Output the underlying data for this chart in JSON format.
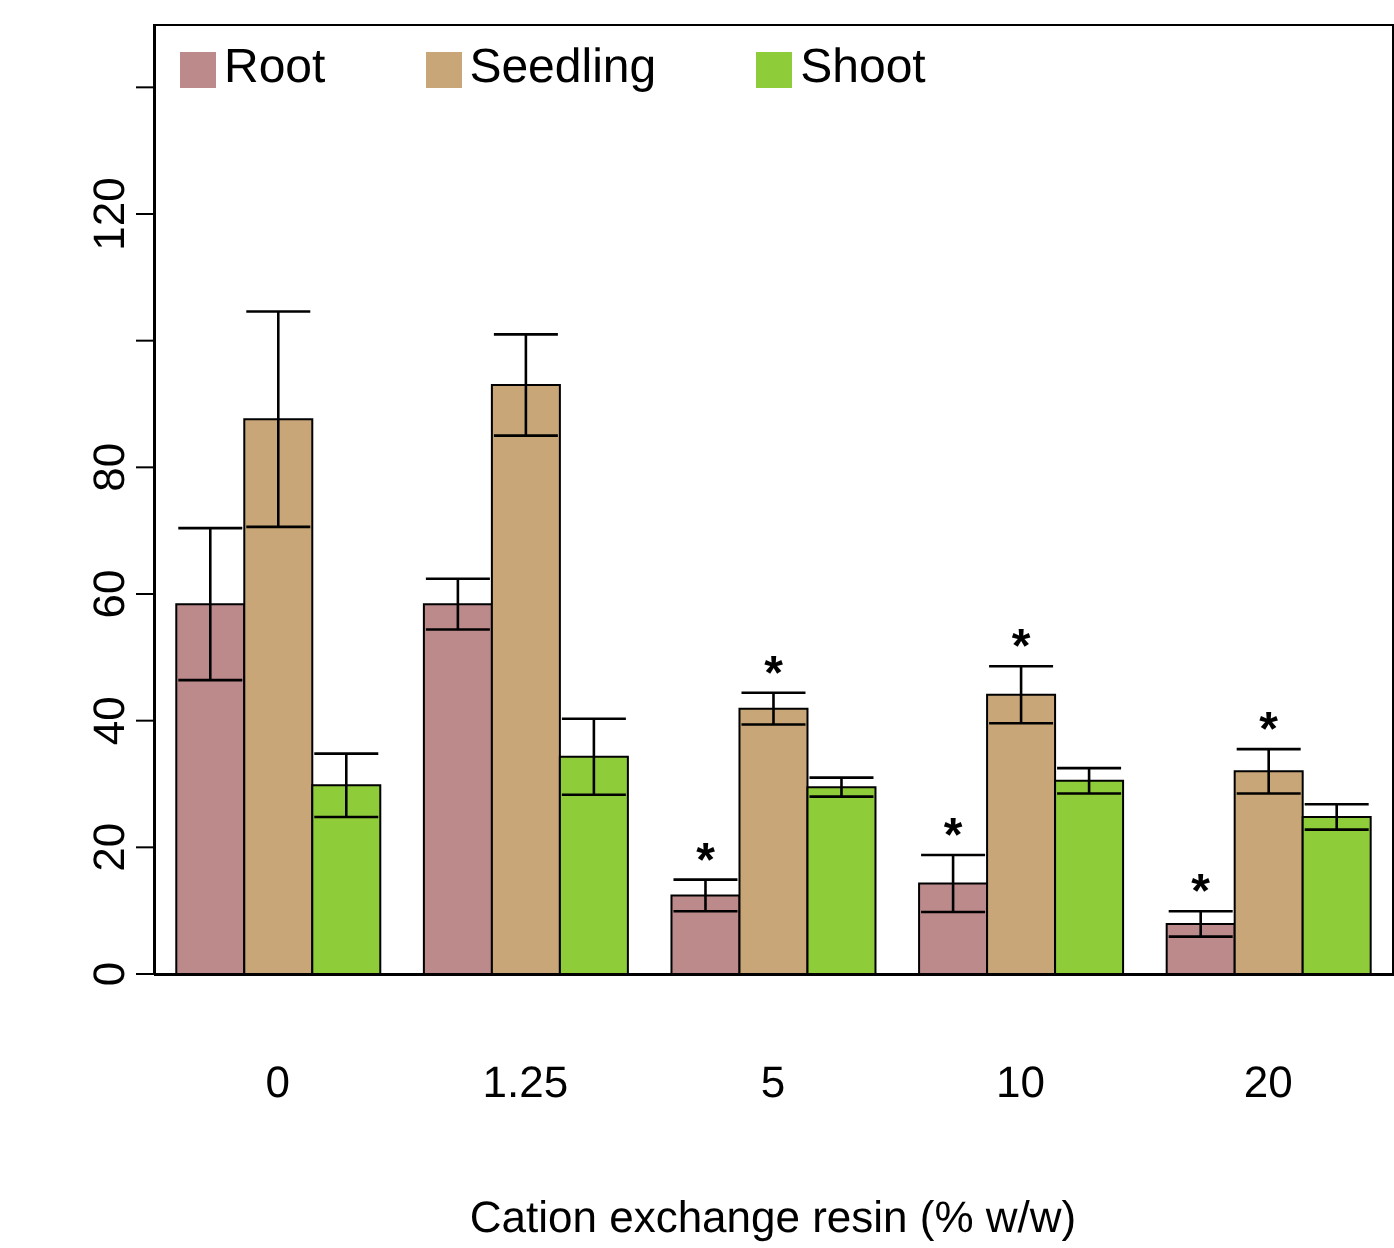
{
  "chart_data": {
    "type": "bar",
    "xlabel": "Cation exchange resin (% w/w)",
    "categories": [
      "0",
      "1.25",
      "5",
      "10",
      "20"
    ],
    "series": [
      {
        "name": "Root",
        "color": "#bc8a8a",
        "values": [
          58.4,
          58.4,
          12.4,
          14.3,
          7.9
        ],
        "errors": [
          12,
          4,
          2.5,
          4.5,
          2
        ],
        "value_labels": [
          null,
          null,
          "*",
          "*",
          "*"
        ]
      },
      {
        "name": "Seedling",
        "color": "#c9a677",
        "values": [
          87.6,
          93,
          41.9,
          44.1,
          32
        ],
        "errors": [
          17,
          8,
          2.5,
          4.5,
          3.5
        ],
        "value_labels": [
          null,
          null,
          "*",
          "*",
          "*"
        ]
      },
      {
        "name": "Shoot",
        "color": "#8fcc3a",
        "values": [
          29.8,
          34.3,
          29.5,
          30.5,
          24.8
        ],
        "errors": [
          5,
          6,
          1.5,
          2,
          2
        ]
      }
    ],
    "ylim": [
      0,
      150
    ],
    "yticks": [
      0,
      20,
      40,
      60,
      80,
      {
        "value": 100,
        "label": null
      },
      120,
      {
        "value": 140,
        "label": null
      }
    ],
    "grid": false,
    "legend": "top left"
  }
}
